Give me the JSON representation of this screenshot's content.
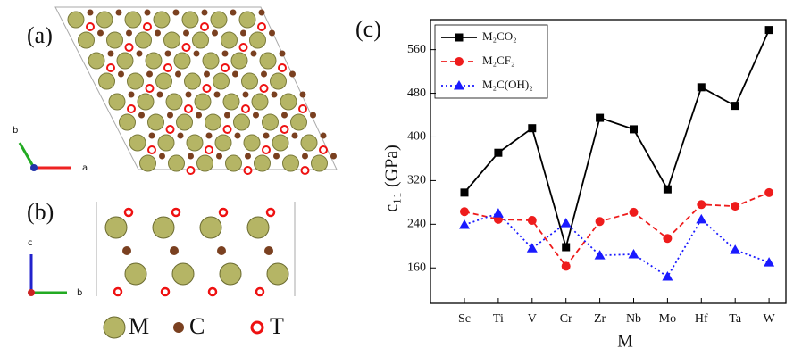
{
  "panels": {
    "a_label": "(a)",
    "b_label": "(b)",
    "axis_a": "a",
    "axis_b": "b",
    "axis_b2": "b",
    "axis_c": "c",
    "legend_M": "M",
    "legend_C": "C",
    "legend_T": "T"
  },
  "chart_data": {
    "type": "line",
    "title": "(c)",
    "x_label": "M",
    "y_label": "c₁₁ (GPa)",
    "categories": [
      "Sc",
      "Ti",
      "V",
      "Cr",
      "Zr",
      "Nb",
      "Mo",
      "Hf",
      "Ta",
      "W"
    ],
    "ylim": [
      95,
      615
    ],
    "yticks": [
      160,
      240,
      320,
      400,
      480,
      560
    ],
    "series": [
      {
        "name": "M₂CO₂",
        "color": "#000000",
        "line_style": "solid",
        "marker": "square",
        "values": [
          298,
          371,
          416,
          198,
          435,
          414,
          304,
          491,
          457,
          596
        ]
      },
      {
        "name": "M₂CF₂",
        "color": "#ee1c1c",
        "line_style": "dashed",
        "marker": "circle",
        "values": [
          263,
          249,
          247,
          163,
          245,
          262,
          214,
          276,
          273,
          298
        ]
      },
      {
        "name": "M₂C(OH)₂",
        "color": "#1a1aff",
        "line_style": "dotted",
        "marker": "triangle",
        "values": [
          239,
          260,
          196,
          242,
          183,
          185,
          144,
          249,
          193,
          170
        ]
      }
    ]
  }
}
